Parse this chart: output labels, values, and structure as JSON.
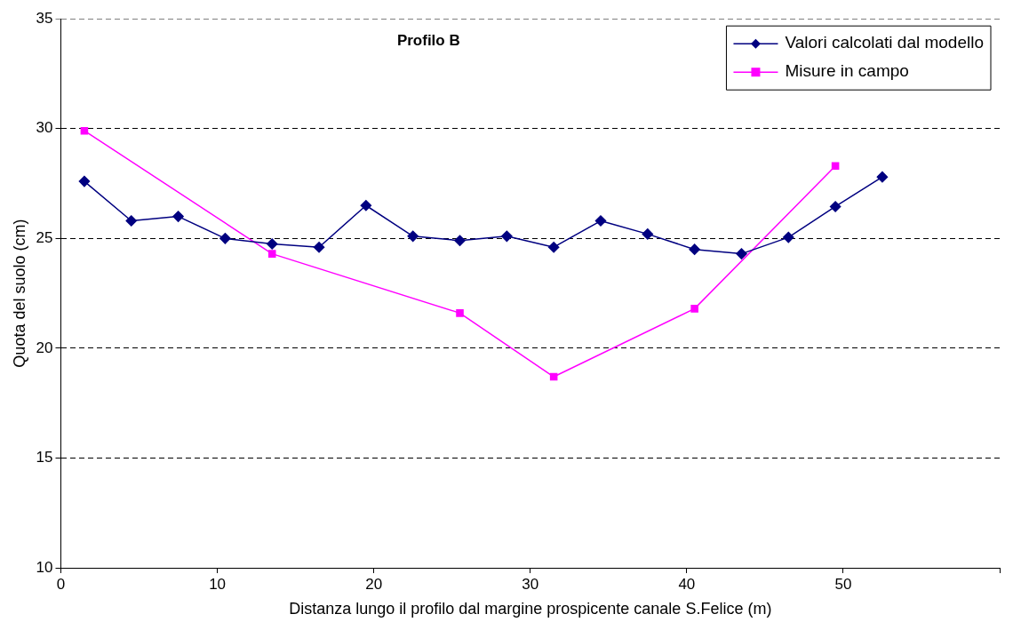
{
  "chart_data": {
    "type": "line",
    "title": "Profilo B",
    "xlabel": "Distanza lungo il profilo dal margine prospicente canale S.Felice (m)",
    "ylabel": "Quota del suolo (cm)",
    "xlim": [
      0,
      60
    ],
    "xticks": [
      0,
      10,
      20,
      30,
      40,
      50,
      {
        "value": 60,
        "label": null
      }
    ],
    "ylim": [
      10,
      35
    ],
    "yticks": [
      10,
      15,
      20,
      25,
      30,
      35
    ],
    "grid": "y",
    "legend": "top right",
    "line_style": "solid",
    "series": [
      {
        "name": "Valori calcolati dal modello",
        "color": "#000080",
        "marker": "diamond",
        "x": [
          1.5,
          4.5,
          7.5,
          10.5,
          13.5,
          16.5,
          19.5,
          22.5,
          25.5,
          28.5,
          31.5,
          34.5,
          37.5,
          40.5,
          43.5,
          46.5,
          49.5,
          52.5
        ],
        "values": [
          27.6,
          25.8,
          26.0,
          25.0,
          24.75,
          24.6,
          26.5,
          25.1,
          24.9,
          25.1,
          24.6,
          25.8,
          25.2,
          24.5,
          24.3,
          25.05,
          26.45,
          27.8
        ]
      },
      {
        "name": "Misure in campo",
        "color": "#ff00ff",
        "marker": "square",
        "x": [
          1.5,
          13.5,
          25.5,
          31.5,
          40.5,
          49.5
        ],
        "values": [
          29.9,
          24.3,
          21.6,
          18.7,
          21.8,
          28.3
        ]
      }
    ]
  }
}
